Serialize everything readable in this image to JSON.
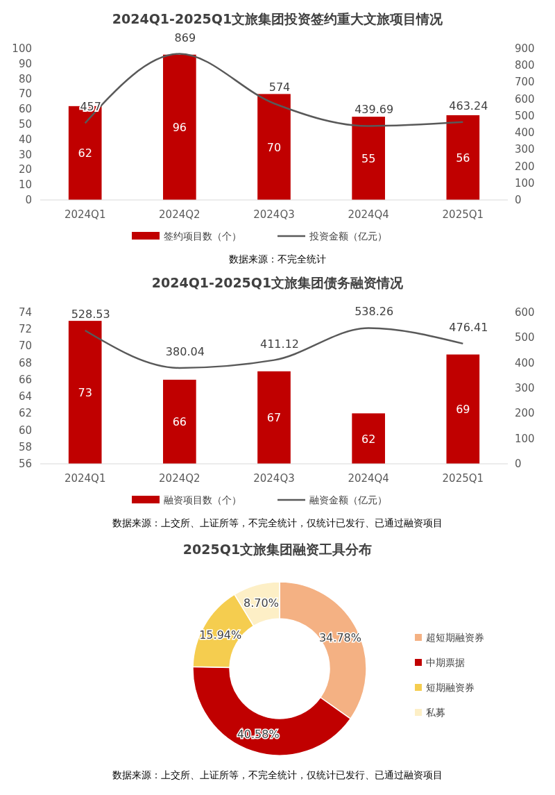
{
  "chart_data": [
    {
      "type": "bar",
      "title": "2024Q1-2025Q1文旅集团投资签约重大文旅项目情况",
      "categories": [
        "2024Q1",
        "2024Q2",
        "2024Q3",
        "2024Q4",
        "2025Q1"
      ],
      "series": [
        {
          "name": "签约项目数（个）",
          "type": "bar",
          "color": "#c00000",
          "values": [
            62,
            96,
            70,
            55,
            56
          ]
        },
        {
          "name": "投资金额（亿元）",
          "type": "line",
          "axis": "y2",
          "color": "#595959",
          "values": [
            457,
            869,
            574,
            439.69,
            463.24
          ]
        }
      ],
      "ylim": [
        0,
        100
      ],
      "yticks": [
        0,
        10,
        20,
        30,
        40,
        50,
        60,
        70,
        80,
        90,
        100
      ],
      "y2lim": [
        0,
        900
      ],
      "y2ticks": [
        0,
        100,
        200,
        300,
        400,
        500,
        600,
        700,
        800,
        900
      ],
      "data_labels": true,
      "legend": "bottom",
      "grid": false,
      "annotations": [
        "数据来源：不完全统计"
      ]
    },
    {
      "type": "bar",
      "title": "2024Q1-2025Q1文旅集团债务融资情况",
      "categories": [
        "2024Q1",
        "2024Q2",
        "2024Q3",
        "2024Q4",
        "2025Q1"
      ],
      "series": [
        {
          "name": "融资项目数（个）",
          "type": "bar",
          "color": "#c00000",
          "values": [
            73,
            66,
            67,
            62,
            69
          ]
        },
        {
          "name": "融资金额（亿元）",
          "type": "line",
          "axis": "y2",
          "color": "#595959",
          "values": [
            528.53,
            380.04,
            411.12,
            538.26,
            476.41
          ]
        }
      ],
      "ylim": [
        56,
        74
      ],
      "yticks": [
        56,
        58,
        60,
        62,
        64,
        66,
        68,
        70,
        72,
        74
      ],
      "y2lim": [
        0,
        600
      ],
      "y2ticks": [
        0,
        100,
        200,
        300,
        400,
        500,
        600
      ],
      "data_labels": true,
      "legend": "bottom",
      "grid": false,
      "annotations": [
        "数据来源：上交所、上证所等，不完全统计，仅统计已发行、已通过融资项目"
      ]
    },
    {
      "type": "donut",
      "title": "2025Q1文旅集团融资工具分布",
      "categories": [
        "超短期融资券",
        "中期票据",
        "短期融资券",
        "私募"
      ],
      "values": [
        34.78,
        40.58,
        15.94,
        8.7
      ],
      "colors": [
        "#f4b183",
        "#c00000",
        "#f5cd4f",
        "#fdefc6"
      ],
      "value_labels": [
        "34.78%",
        "40.58%",
        "15.94%",
        "8.70%"
      ],
      "legend": "right",
      "annotations": [
        "数据来源：上交所、上证所等，不完全统计，仅统计已发行、已通过融资项目"
      ]
    }
  ]
}
